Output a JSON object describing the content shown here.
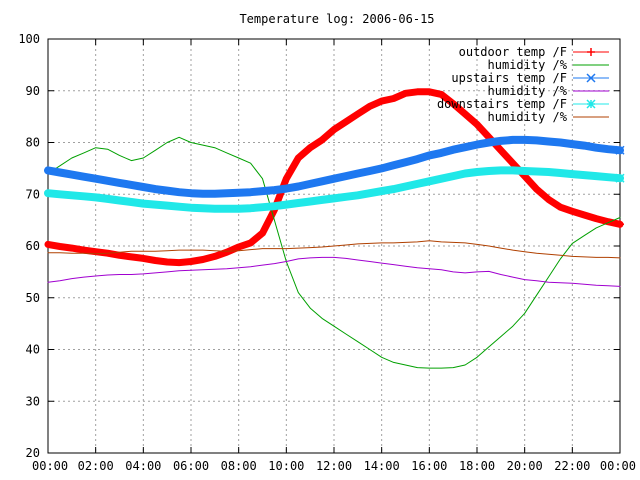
{
  "chart_data": {
    "type": "line",
    "title": "Temperature log: 2006-06-15",
    "xlabel": "",
    "ylabel": "",
    "x_ticks": [
      "00:00",
      "02:00",
      "04:00",
      "06:00",
      "08:00",
      "10:00",
      "12:00",
      "14:00",
      "16:00",
      "18:00",
      "20:00",
      "22:00",
      "00:00"
    ],
    "xlim": [
      0,
      24
    ],
    "ylim": [
      20,
      100
    ],
    "y_ticks": [
      20,
      30,
      40,
      50,
      60,
      70,
      80,
      90,
      100
    ],
    "grid": true,
    "legend_position": "top-right",
    "x": [
      0,
      0.5,
      1,
      1.5,
      2,
      2.5,
      3,
      3.5,
      4,
      4.5,
      5,
      5.5,
      6,
      6.5,
      7,
      7.5,
      8,
      8.5,
      9,
      9.5,
      10,
      10.5,
      11,
      11.5,
      12,
      12.5,
      13,
      13.5,
      14,
      14.5,
      15,
      15.5,
      16,
      16.5,
      17,
      17.5,
      18,
      18.5,
      19,
      19.5,
      20,
      20.5,
      21,
      21.5,
      22,
      22.5,
      23,
      23.5,
      24
    ],
    "series": [
      {
        "name": "outdoor temp /F",
        "color": "#ff0000",
        "marker": "plus",
        "width": 7,
        "values": [
          60.3,
          59.9,
          59.6,
          59.2,
          58.9,
          58.6,
          58.2,
          57.9,
          57.6,
          57.2,
          56.9,
          56.8,
          57.0,
          57.4,
          58.0,
          58.8,
          59.8,
          60.6,
          62.5,
          67.0,
          73.0,
          77.0,
          79.0,
          80.5,
          82.5,
          84.0,
          85.5,
          87.0,
          88.0,
          88.5,
          89.5,
          89.8,
          89.8,
          89.3,
          87.5,
          85.5,
          83.5,
          81.0,
          78.5,
          76.0,
          73.5,
          71.0,
          69.0,
          67.5,
          66.7,
          66.0,
          65.3,
          64.7,
          64.2
        ]
      },
      {
        "name": "humidity /%",
        "color": "#00a000",
        "marker": "none",
        "width": 1,
        "values": [
          74.0,
          75.5,
          77.0,
          78.0,
          79.0,
          78.7,
          77.5,
          76.5,
          77.0,
          78.5,
          80.0,
          81.0,
          80.0,
          79.5,
          79.0,
          78.0,
          77.0,
          76.0,
          73.0,
          65.0,
          57.0,
          51.0,
          48.0,
          46.0,
          44.5,
          43.0,
          41.5,
          40.0,
          38.5,
          37.5,
          37.0,
          36.5,
          36.4,
          36.4,
          36.5,
          37.0,
          38.5,
          40.5,
          42.5,
          44.5,
          47.0,
          50.5,
          54.0,
          57.5,
          60.5,
          62.0,
          63.5,
          64.5,
          65.5
        ]
      },
      {
        "name": "upstairs temp /F",
        "color": "#1e78f0",
        "marker": "x",
        "width": 8,
        "values": [
          74.6,
          74.2,
          73.8,
          73.4,
          73.0,
          72.6,
          72.2,
          71.8,
          71.4,
          71.0,
          70.7,
          70.4,
          70.2,
          70.1,
          70.1,
          70.2,
          70.3,
          70.4,
          70.6,
          70.8,
          71.1,
          71.5,
          72.0,
          72.5,
          73.0,
          73.5,
          74.0,
          74.5,
          75.0,
          75.6,
          76.2,
          76.8,
          77.5,
          78.0,
          78.6,
          79.1,
          79.6,
          80.0,
          80.3,
          80.5,
          80.5,
          80.4,
          80.2,
          80.0,
          79.7,
          79.4,
          79.0,
          78.7,
          78.5
        ]
      },
      {
        "name": "humidity /%",
        "color": "#a000d0",
        "marker": "none",
        "width": 1,
        "values": [
          53.0,
          53.3,
          53.7,
          54.0,
          54.2,
          54.4,
          54.5,
          54.5,
          54.6,
          54.8,
          55.0,
          55.2,
          55.3,
          55.4,
          55.5,
          55.6,
          55.8,
          56.0,
          56.3,
          56.6,
          57.0,
          57.5,
          57.7,
          57.8,
          57.8,
          57.6,
          57.3,
          57.0,
          56.7,
          56.4,
          56.1,
          55.8,
          55.6,
          55.4,
          55.0,
          54.8,
          55.0,
          55.1,
          54.5,
          54.0,
          53.5,
          53.3,
          53.0,
          52.9,
          52.8,
          52.6,
          52.4,
          52.3,
          52.2
        ]
      },
      {
        "name": "downstairs temp /F",
        "color": "#20e8e8",
        "marker": "star",
        "width": 8,
        "values": [
          70.2,
          70.0,
          69.8,
          69.6,
          69.4,
          69.1,
          68.8,
          68.5,
          68.2,
          68.0,
          67.8,
          67.6,
          67.4,
          67.3,
          67.2,
          67.2,
          67.2,
          67.3,
          67.5,
          67.7,
          68.0,
          68.3,
          68.6,
          68.9,
          69.2,
          69.5,
          69.8,
          70.2,
          70.6,
          71.0,
          71.5,
          72.0,
          72.5,
          73.0,
          73.5,
          74.0,
          74.3,
          74.5,
          74.6,
          74.6,
          74.5,
          74.4,
          74.3,
          74.1,
          73.9,
          73.7,
          73.5,
          73.3,
          73.1
        ]
      },
      {
        "name": "humidity /%",
        "color": "#b04000",
        "marker": "none",
        "width": 1,
        "values": [
          58.7,
          58.7,
          58.6,
          58.6,
          58.5,
          58.6,
          58.8,
          59.0,
          59.0,
          59.0,
          59.1,
          59.2,
          59.2,
          59.2,
          59.1,
          59.0,
          59.1,
          59.3,
          59.5,
          59.5,
          59.5,
          59.6,
          59.7,
          59.8,
          60.0,
          60.2,
          60.4,
          60.5,
          60.6,
          60.6,
          60.7,
          60.8,
          61.0,
          60.8,
          60.7,
          60.6,
          60.3,
          60.0,
          59.6,
          59.2,
          58.9,
          58.6,
          58.4,
          58.2,
          58.0,
          57.9,
          57.8,
          57.8,
          57.7
        ]
      }
    ]
  }
}
